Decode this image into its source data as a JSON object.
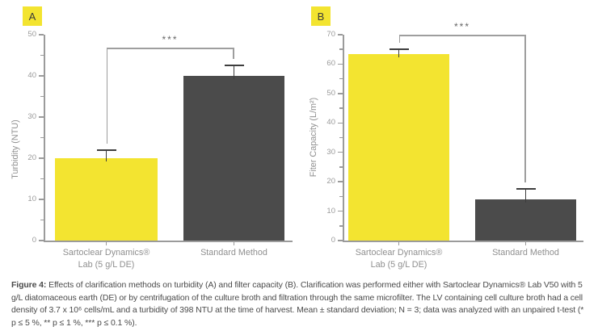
{
  "chart_data": [
    {
      "type": "bar",
      "panel_label": "A",
      "title": "",
      "xlabel": "",
      "ylabel": "Turbidity (NTU)",
      "ylim": [
        0,
        50
      ],
      "ytick_step": 10,
      "minor_tick_step": 5,
      "grid": false,
      "legend_position": "none",
      "categories": [
        "Sartoclear Dynamics® Lab (5 g/L DE)",
        "Standard Method"
      ],
      "category_lines": [
        [
          "Sartoclear Dynamics®",
          "Lab (5 g/L DE)"
        ],
        [
          "Standard Method"
        ]
      ],
      "values": [
        20,
        40
      ],
      "errors_plus_sd": [
        2,
        2.5
      ],
      "bar_colors": [
        "#f3e430",
        "#4b4b4b"
      ],
      "significance": "***"
    },
    {
      "type": "bar",
      "panel_label": "B",
      "title": "",
      "xlabel": "",
      "ylabel": "Fiter Capacity (L/m²)",
      "ylim": [
        0,
        70
      ],
      "ytick_step": 10,
      "minor_tick_step": 5,
      "grid": false,
      "legend_position": "none",
      "categories": [
        "Sartoclear Dynamics® Lab (5 g/L DE)",
        "Standard Method"
      ],
      "category_lines": [
        [
          "Sartoclear Dynamics®",
          "Lab (5 g/L DE)"
        ],
        [
          "Standard Method"
        ]
      ],
      "values": [
        63.5,
        14
      ],
      "errors_plus_sd": [
        1.5,
        3.5
      ],
      "bar_colors": [
        "#f3e430",
        "#4b4b4b"
      ],
      "significance": "***"
    }
  ],
  "caption": {
    "prefix": "Figure 4:",
    "body": " Effects of clarification methods on turbidity (A) and filter capacity (B). Clarification was performed either with Sartoclear Dynamics® Lab V50 with 5 g/L diatomaceous earth (DE) or by centrifugation of the culture broth and filtration through the same microfilter. The LV containing cell culture broth had a cell density of 3.7 x 10⁶ cells/mL and a turbidity of 398 NTU at the time of harvest. Mean ± standard deviation; N = 3; data was analyzed with an unpaired t-test (* p ≤ 5 %, ** p ≤ 1 %, *** p ≤ 0.1 %)."
  },
  "colors": {
    "accent_yellow": "#f3e430",
    "dark_bar": "#4b4b4b",
    "axis": "#9b9b9b",
    "tick_label": "#9b9b9b",
    "category_label": "#8f8f8f",
    "error_bar": "#3d3d3d",
    "bracket": "#9e9e9e",
    "sig_text": "#666666",
    "caption_text": "#4a4a4a",
    "panel_label_text": "#3a3a3a"
  }
}
